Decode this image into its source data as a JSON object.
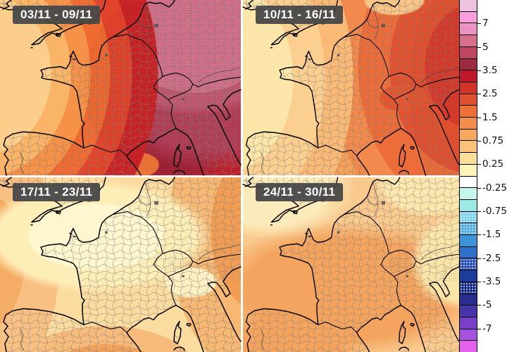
{
  "panels": [
    {
      "label": "03/11 - 09/11",
      "dominant_colors": [
        "#C1202A",
        "#A02336",
        "#B2415A",
        "#D4738E",
        "#F06B31",
        "#F9B468"
      ]
    },
    {
      "label": "10/11 - 16/11",
      "dominant_colors": [
        "#F5A058",
        "#F8BA76",
        "#EC6D3A",
        "#D63B2B",
        "#FBE5A8"
      ]
    },
    {
      "label": "17/11 - 23/11",
      "dominant_colors": [
        "#FBDCA0",
        "#FEF6CE",
        "#F8C183",
        "#F3A35E"
      ]
    },
    {
      "label": "24/11 - 30/11",
      "dominant_colors": [
        "#F9C98E",
        "#F4A45E",
        "#FCEBBA",
        "#FBE4A8"
      ]
    }
  ],
  "colorbar": {
    "segments": [
      {
        "color": "#F0C2E2",
        "dotted": false
      },
      {
        "color": "#F99EDC",
        "dotted": false
      },
      {
        "color": "#EC93C3",
        "dotted": false
      },
      {
        "color": "#D76E8C",
        "dotted": false
      },
      {
        "color": "#BE4660",
        "dotted": false
      },
      {
        "color": "#9C2A40",
        "dotted": false
      },
      {
        "color": "#C0182C",
        "dotted": false
      },
      {
        "color": "#D23228",
        "dotted": false
      },
      {
        "color": "#E0502C",
        "dotted": false
      },
      {
        "color": "#EC7038",
        "dotted": false
      },
      {
        "color": "#F28E4A",
        "dotted": false
      },
      {
        "color": "#F6A95E",
        "dotted": false
      },
      {
        "color": "#F9C278",
        "dotted": false
      },
      {
        "color": "#FCDE98",
        "dotted": false
      },
      {
        "color": "#FEF4BA",
        "dotted": false
      },
      {
        "color": "#FFFFFF",
        "dotted": false
      },
      {
        "color": "#C4F6EE",
        "dotted": false
      },
      {
        "color": "#9BE8E4",
        "dotted": false
      },
      {
        "color": "#7ED2EE",
        "dotted": true
      },
      {
        "color": "#54AEE4",
        "dotted": true
      },
      {
        "color": "#3E92D8",
        "dotted": false
      },
      {
        "color": "#2F72CA",
        "dotted": false
      },
      {
        "color": "#2C54B2",
        "dotted": true
      },
      {
        "color": "#1E3C9C",
        "dotted": false
      },
      {
        "color": "#1A3086",
        "dotted": true
      },
      {
        "color": "#2A2C8E",
        "dotted": false
      },
      {
        "color": "#4634A8",
        "dotted": false
      },
      {
        "color": "#7840C8",
        "dotted": false
      },
      {
        "color": "#A852E0",
        "dotted": false
      },
      {
        "color": "#E361EC",
        "dotted": false
      }
    ],
    "ticks": [
      {
        "label": "7",
        "boundary": 2
      },
      {
        "label": "5",
        "boundary": 4
      },
      {
        "label": "3.5",
        "boundary": 6
      },
      {
        "label": "2.5",
        "boundary": 8
      },
      {
        "label": "1.5",
        "boundary": 10
      },
      {
        "label": "0.75",
        "boundary": 12
      },
      {
        "label": "0.25",
        "boundary": 14
      },
      {
        "label": "-0.25",
        "boundary": 16
      },
      {
        "label": "-0.75",
        "boundary": 18
      },
      {
        "label": "-1.5",
        "boundary": 20
      },
      {
        "label": "-2.5",
        "boundary": 22
      },
      {
        "label": "-3.5",
        "boundary": 24
      },
      {
        "label": "-5",
        "boundary": 26
      },
      {
        "label": "-7",
        "boundary": 28
      }
    ]
  }
}
